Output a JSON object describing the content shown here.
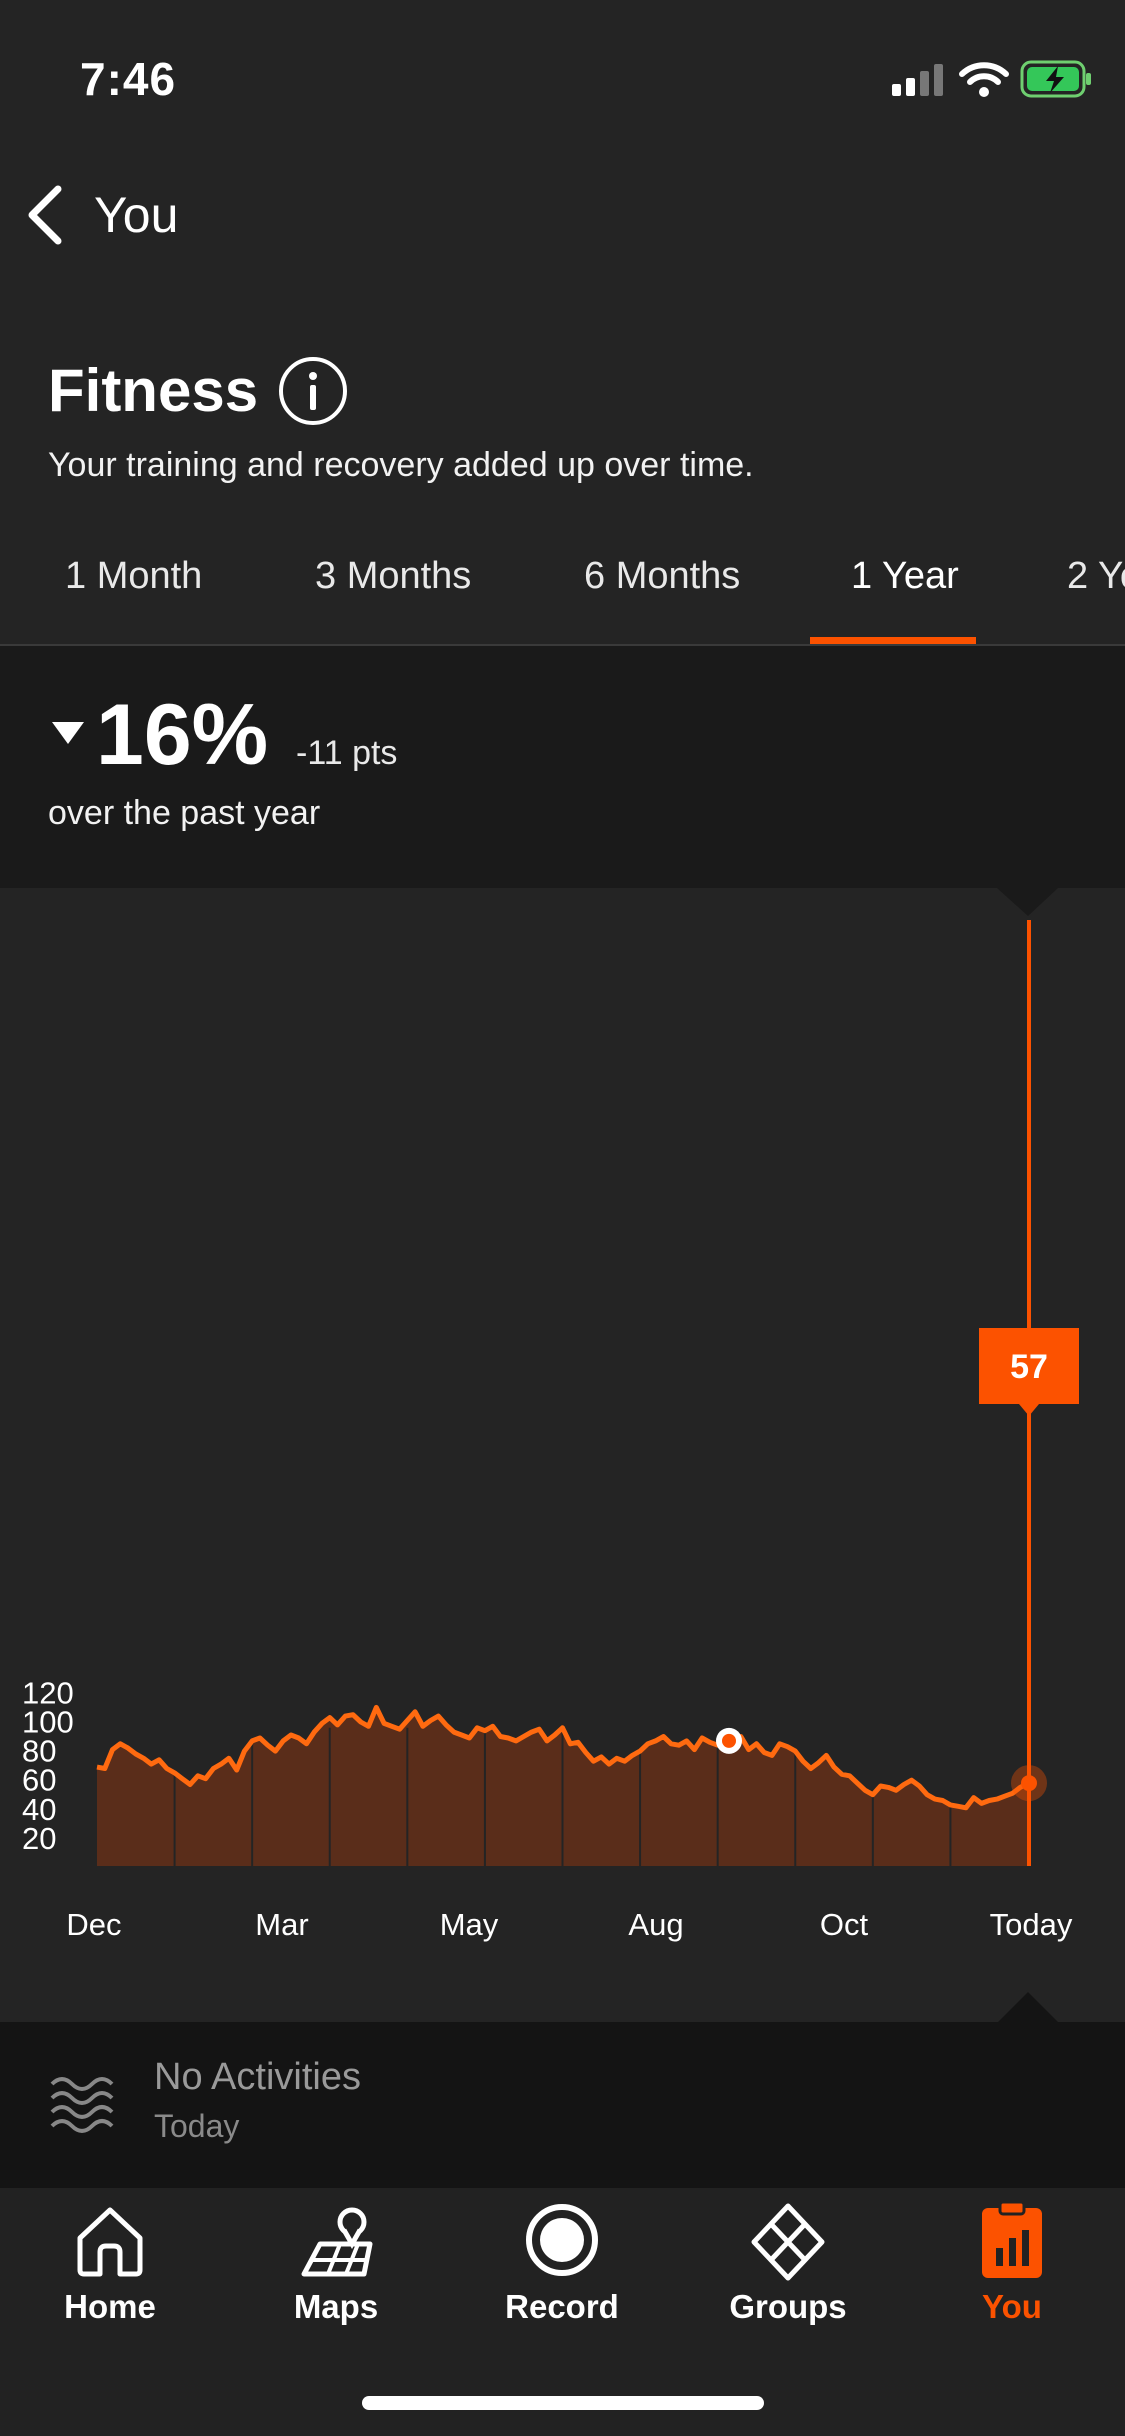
{
  "status": {
    "time": "7:46"
  },
  "header": {
    "back_label": "You"
  },
  "page": {
    "title": "Fitness",
    "subtitle": "Your training and recovery added up over time."
  },
  "tabs": [
    {
      "label": "1 Month"
    },
    {
      "label": "3 Months"
    },
    {
      "label": "6 Months"
    },
    {
      "label": "1 Year",
      "active": true
    },
    {
      "label": "2 Ye"
    }
  ],
  "summary": {
    "percent": "16%",
    "points": "-11 pts",
    "period": "over the past year"
  },
  "colors": {
    "accent": "#fc5200",
    "fill": "#5a2d1a",
    "line": "#ff6a10"
  },
  "chart_data": {
    "type": "area",
    "title": "",
    "xlabel": "",
    "ylabel": "",
    "x_ticks": [
      "Dec",
      "Mar",
      "May",
      "Aug",
      "Oct",
      "Today"
    ],
    "y_ticks": [
      120,
      100,
      80,
      60,
      40,
      20
    ],
    "ylim": [
      0,
      130
    ],
    "grid": false,
    "series": [
      {
        "values": [
          68,
          67,
          80,
          84,
          81,
          77,
          74,
          70,
          73,
          67,
          64,
          60,
          56,
          62,
          60,
          67,
          70,
          74,
          66,
          79,
          86,
          88,
          83,
          79,
          86,
          90,
          88,
          84,
          92,
          98,
          102,
          97,
          103,
          104,
          99,
          96,
          109,
          98,
          96,
          94,
          100,
          106,
          96,
          100,
          103,
          97,
          92,
          90,
          88,
          95,
          93,
          96,
          89,
          88,
          86,
          89,
          92,
          94,
          86,
          90,
          95,
          84,
          85,
          78,
          72,
          75,
          70,
          74,
          72,
          76,
          79,
          84,
          86,
          89,
          84,
          83,
          86,
          80,
          88,
          85,
          83,
          85,
          87,
          89,
          80,
          84,
          78,
          76,
          84,
          82,
          79,
          72,
          67,
          71,
          76,
          68,
          63,
          62,
          57,
          52,
          49,
          55,
          54,
          52,
          56,
          59,
          55,
          49,
          46,
          45,
          42,
          41,
          40,
          47,
          43,
          45,
          46,
          48,
          50,
          54,
          57
        ],
        "marker_value": 86
      }
    ],
    "tooltip": {
      "value": "57",
      "label": "Today"
    }
  },
  "activities": {
    "title": "No Activities",
    "subtitle": "Today"
  },
  "nav": [
    {
      "label": "Home",
      "icon": "home-icon"
    },
    {
      "label": "Maps",
      "icon": "maps-icon"
    },
    {
      "label": "Record",
      "icon": "record-icon"
    },
    {
      "label": "Groups",
      "icon": "groups-icon"
    },
    {
      "label": "You",
      "icon": "you-icon",
      "active": true
    }
  ]
}
